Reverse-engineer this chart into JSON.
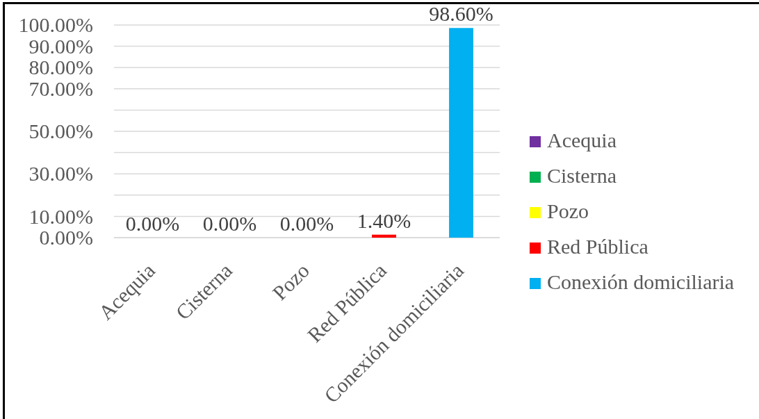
{
  "chart_data": {
    "type": "bar",
    "stacked": true,
    "categories": [
      "Acequia",
      "Cisterna",
      "Pozo",
      "Red Pública",
      "Conexión domiciliaria"
    ],
    "series": [
      {
        "name": "Acequia",
        "color": "#7030a0",
        "values": [
          0,
          null,
          null,
          null,
          null
        ],
        "value_labels": [
          "0.00%",
          null,
          null,
          null,
          null
        ]
      },
      {
        "name": "Cisterna",
        "color": "#00b050",
        "values": [
          null,
          0,
          null,
          null,
          null
        ],
        "value_labels": [
          null,
          "0.00%",
          null,
          null,
          null
        ]
      },
      {
        "name": "Pozo",
        "color": "#ffff00",
        "values": [
          null,
          null,
          0,
          null,
          null
        ],
        "value_labels": [
          null,
          null,
          "0.00%",
          null,
          null
        ]
      },
      {
        "name": "Red Pública",
        "color": "#ff0000",
        "values": [
          null,
          null,
          null,
          1.4,
          null
        ],
        "value_labels": [
          null,
          null,
          null,
          "1.40%",
          null
        ]
      },
      {
        "name": "Conexión domiciliaria",
        "color": "#00b0f0",
        "values": [
          null,
          null,
          null,
          null,
          98.6
        ],
        "value_labels": [
          null,
          null,
          null,
          null,
          "98.60%"
        ]
      }
    ],
    "ylim": [
      0,
      100
    ],
    "yticks": [
      {
        "value": 0,
        "label": "0.00%"
      },
      {
        "value": 10,
        "label": "10.00%"
      },
      {
        "value": 20,
        "label": null
      },
      {
        "value": 30,
        "label": "30.00%"
      },
      {
        "value": 40,
        "label": null
      },
      {
        "value": 50,
        "label": "50.00%"
      },
      {
        "value": 60,
        "label": null
      },
      {
        "value": 70,
        "label": "70.00%"
      },
      {
        "value": 80,
        "label": "80.00%"
      },
      {
        "value": 90,
        "label": "90.00%"
      },
      {
        "value": 100,
        "label": "100.00%"
      }
    ],
    "grid": "y",
    "legend": "right"
  }
}
